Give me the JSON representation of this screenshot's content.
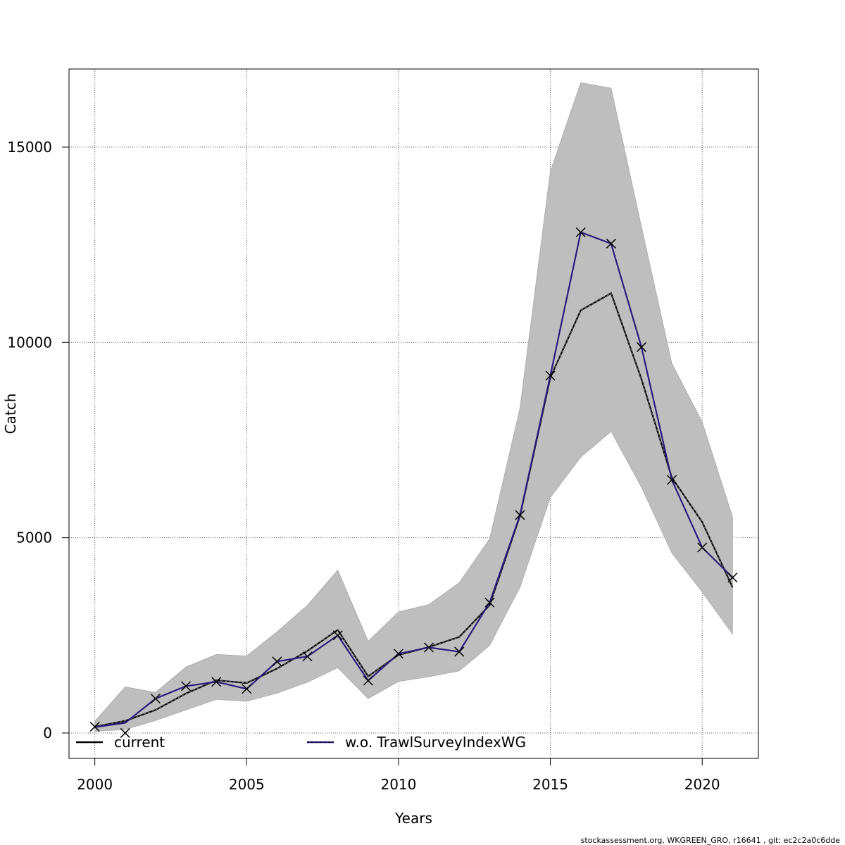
{
  "chart_data": {
    "type": "line",
    "title": "",
    "xlabel": "Years",
    "ylabel": "Catch",
    "xlim": [
      1999.15,
      2021.85
    ],
    "ylim": [
      -650,
      17000
    ],
    "x_ticks": [
      2000,
      2005,
      2010,
      2015,
      2020
    ],
    "x_tick_labels": [
      "2000",
      "2005",
      "2010",
      "2015",
      "2020"
    ],
    "y_ticks": [
      0,
      5000,
      10000,
      15000
    ],
    "y_tick_labels": [
      "0",
      "5000",
      "10000",
      "15000"
    ],
    "grid": true,
    "legend_position": "bottom",
    "x": [
      2000,
      2001,
      2002,
      2003,
      2004,
      2005,
      2006,
      2007,
      2008,
      2009,
      2010,
      2011,
      2012,
      2013,
      2014,
      2015,
      2016,
      2017,
      2018,
      2019,
      2020,
      2021
    ],
    "confidence_band": {
      "color": "#bebebe",
      "upper": [
        300,
        1180,
        1040,
        1690,
        2010,
        1970,
        2590,
        3270,
        4170,
        2350,
        3100,
        3290,
        3850,
        4970,
        8320,
        14380,
        16650,
        16510,
        12960,
        9460,
        7960,
        5530
      ],
      "lower": [
        40,
        90,
        320,
        590,
        860,
        810,
        1020,
        1300,
        1670,
        880,
        1320,
        1440,
        1590,
        2240,
        3730,
        6030,
        7060,
        7720,
        6290,
        4610,
        3610,
        2530
      ]
    },
    "series": [
      {
        "name": "current",
        "color": "#000000",
        "values": [
          160,
          310,
          590,
          1010,
          1350,
          1280,
          1650,
          2100,
          2640,
          1450,
          2000,
          2200,
          2460,
          3270,
          5560,
          9100,
          10820,
          11260,
          9060,
          6540,
          5400,
          3730
        ]
      },
      {
        "name": "w.o. TrawlSurveyIndexWG",
        "color": "#2a1d7b",
        "values": [
          150,
          260,
          880,
          1200,
          1310,
          1130,
          1830,
          1960,
          2500,
          1340,
          2030,
          2190,
          2080,
          3340,
          5580,
          9150,
          12820,
          12530,
          9880,
          6480,
          4750,
          3980
        ]
      }
    ],
    "observations": {
      "marker": "x",
      "values": [
        160,
        0,
        880,
        1200,
        1310,
        1130,
        1830,
        1960,
        2500,
        1340,
        2030,
        2190,
        2080,
        3340,
        5580,
        9150,
        12820,
        12530,
        9880,
        6480,
        4750,
        3980
      ]
    }
  },
  "footer_text": "stockassessment.org, WKGREEN_GRO, r16641 , git: ec2c2a0c6dde"
}
